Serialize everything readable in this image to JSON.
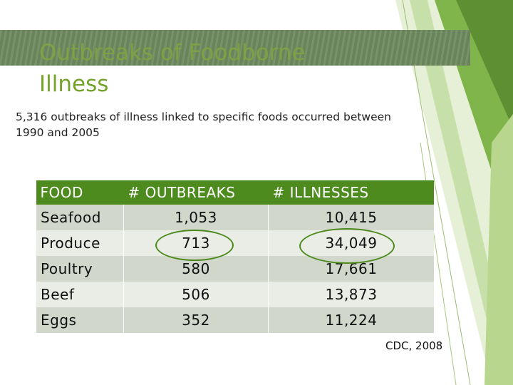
{
  "title": {
    "line1": "Outbreaks of Foodborne",
    "line2": "Illness"
  },
  "subtitle": "5,316 outbreaks of illness linked to specific foods occurred between 1990 and 2005",
  "table": {
    "headers": [
      "FOOD",
      "# OUTBREAKS",
      "# ILLNESSES"
    ],
    "rows": [
      {
        "food": "Seafood",
        "outbreaks": "1,053",
        "illnesses": "10,415"
      },
      {
        "food": "Produce",
        "outbreaks": "713",
        "illnesses": "34,049"
      },
      {
        "food": "Poultry",
        "outbreaks": "580",
        "illnesses": "17,661"
      },
      {
        "food": "Beef",
        "outbreaks": "506",
        "illnesses": "13,873"
      },
      {
        "food": "Eggs",
        "outbreaks": "352",
        "illnesses": "11,224"
      }
    ]
  },
  "source": "CDC, 2008",
  "colors": {
    "accent": "#4e8b1f",
    "title": "#74a329",
    "band": "#6f8a60"
  }
}
